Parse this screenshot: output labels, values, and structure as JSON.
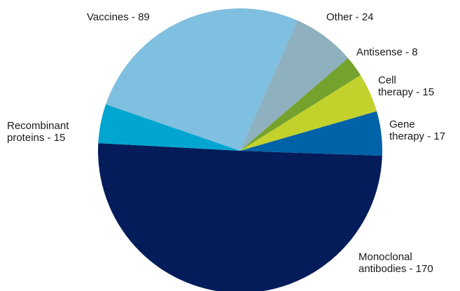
{
  "chart_data": {
    "type": "pie",
    "title": "",
    "slices": [
      {
        "label_lines": [
          "Monoclonal",
          "antibodies - 170"
        ],
        "value": 170,
        "color": "#041c5a"
      },
      {
        "label_lines": [
          "Recombinant",
          "proteins - 15"
        ],
        "value": 15,
        "color": "#00a6cf"
      },
      {
        "label_lines": [
          "Vaccines - 89"
        ],
        "value": 89,
        "color": "#7fbfdf"
      },
      {
        "label_lines": [
          "Other - 24"
        ],
        "value": 24,
        "color": "#8eb0bf"
      },
      {
        "label_lines": [
          "Antisense - 8"
        ],
        "value": 8,
        "color": "#75a22c"
      },
      {
        "label_lines": [
          "Cell",
          "therapy - 15"
        ],
        "value": 15,
        "color": "#c3d12d"
      },
      {
        "label_lines": [
          "Gene",
          "therapy - 17"
        ],
        "value": 17,
        "color": "#0063a8"
      }
    ]
  }
}
